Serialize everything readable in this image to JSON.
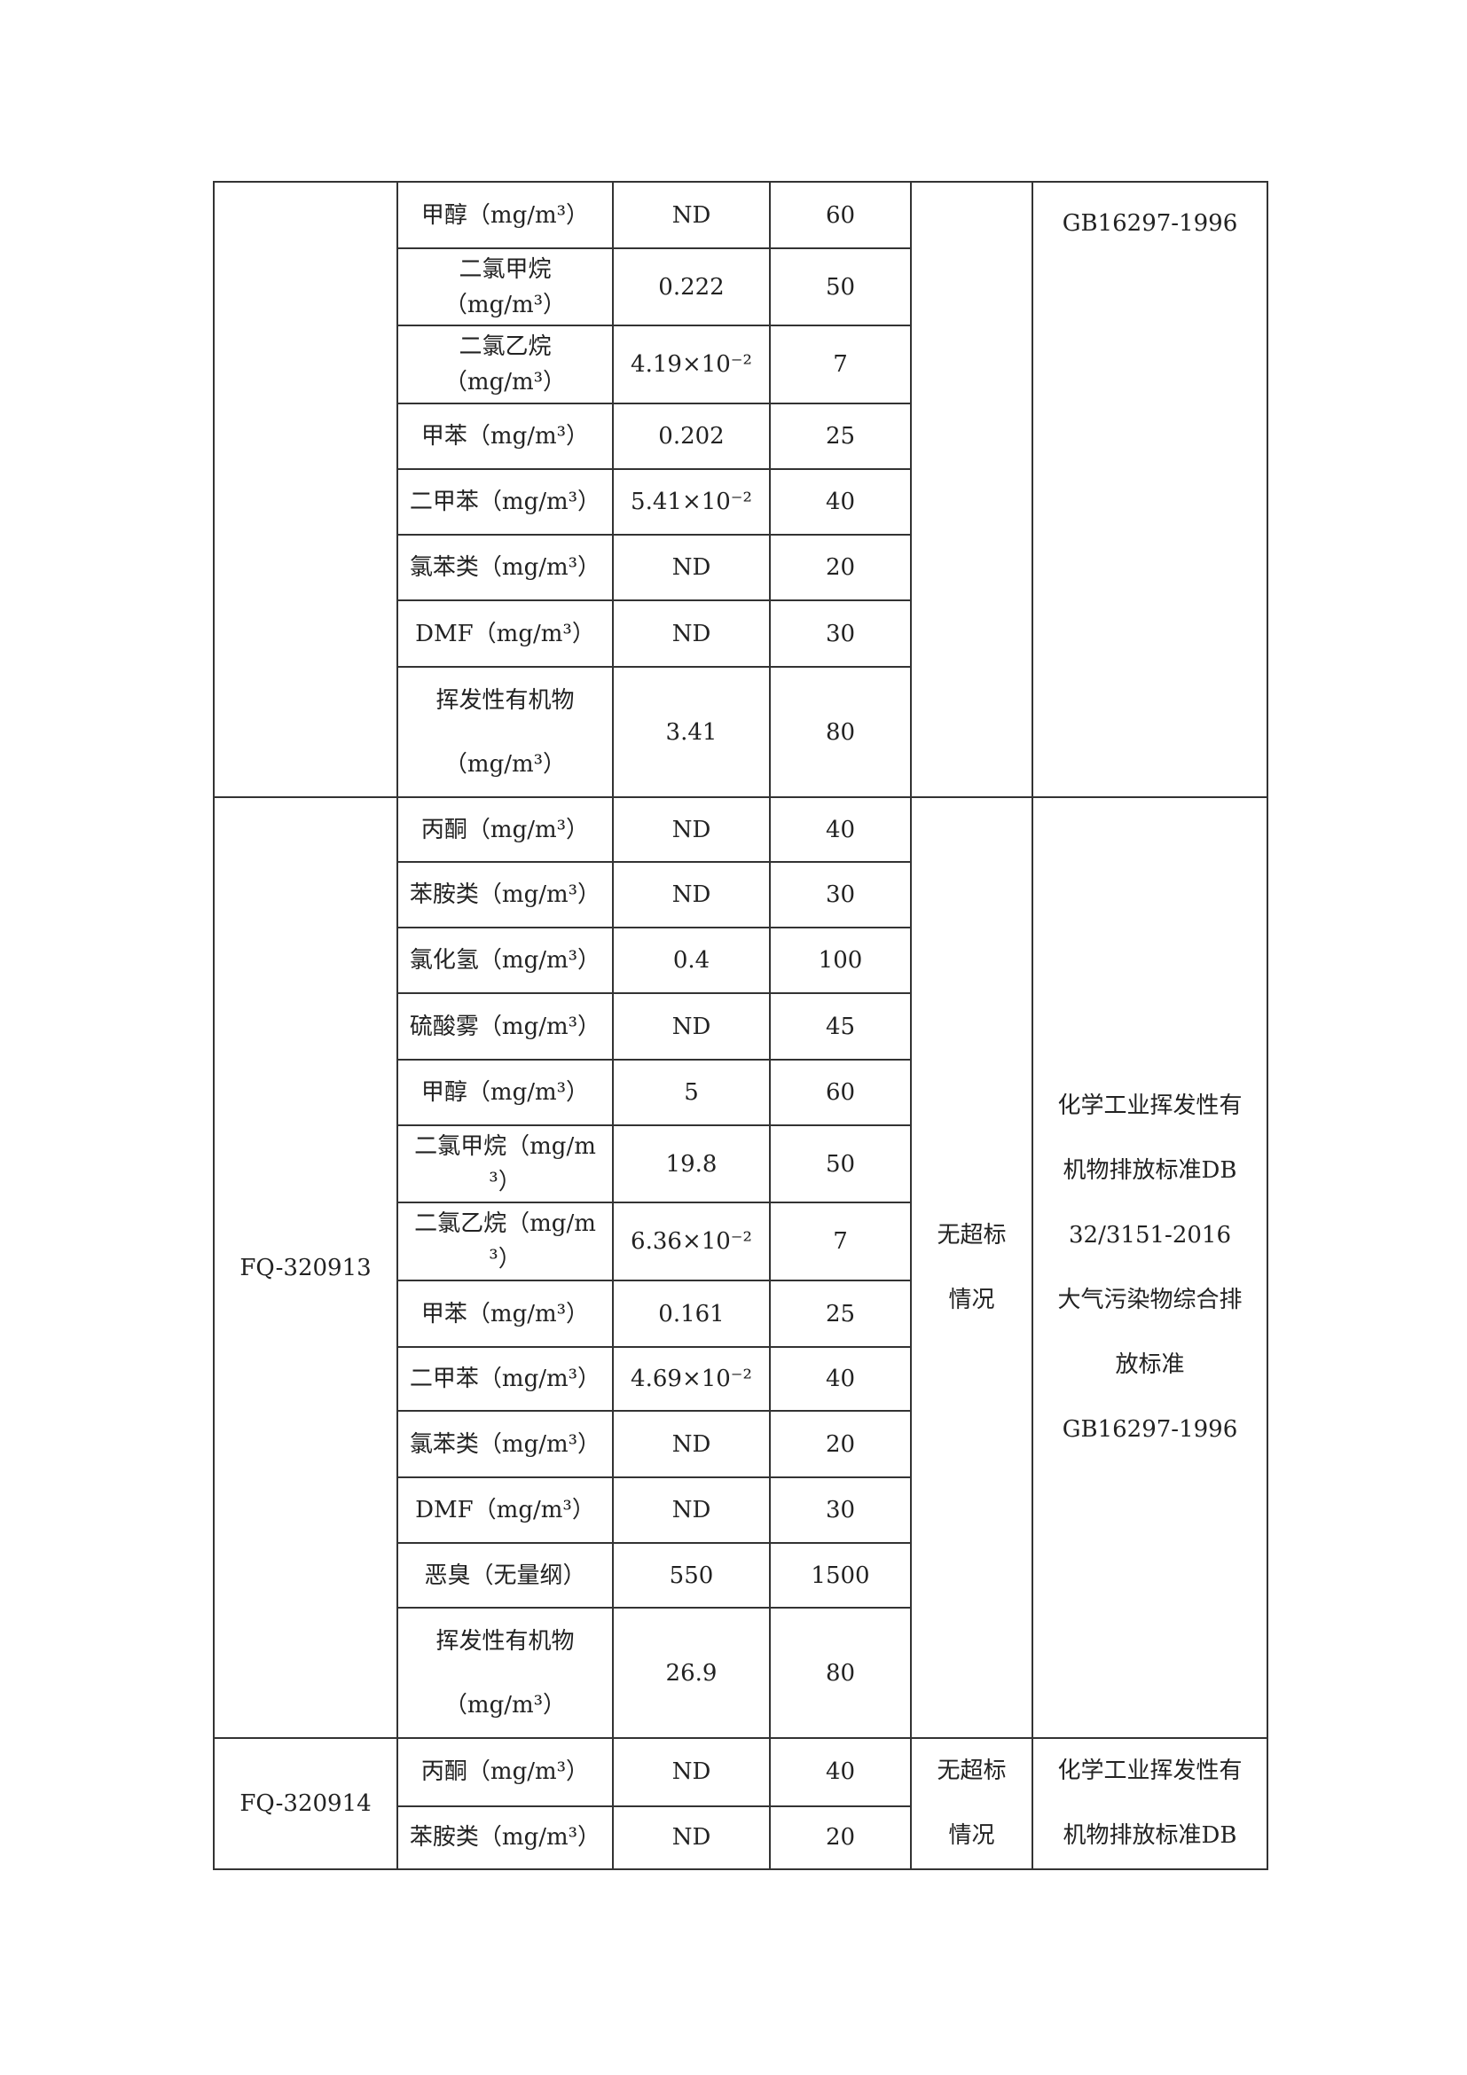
{
  "groups": [
    {
      "outlet": "",
      "conclusion": "",
      "standard": "GB16297-1996",
      "rows": [
        {
          "item": "甲醇（mg/m³）",
          "result": "ND",
          "limit": "60"
        },
        {
          "item": "二氯甲烷\n（mg/m³）",
          "result": "0.222",
          "limit": "50"
        },
        {
          "item": "二氯乙烷\n（mg/m³）",
          "result": "4.19×10⁻²",
          "limit": "7"
        },
        {
          "item": "甲苯（mg/m³）",
          "result": "0.202",
          "limit": "25"
        },
        {
          "item": "二甲苯（mg/m³）",
          "result": "5.41×10⁻²",
          "limit": "40"
        },
        {
          "item": "氯苯类（mg/m³）",
          "result": "ND",
          "limit": "20"
        },
        {
          "item": "DMF（mg/m³）",
          "result": "ND",
          "limit": "30"
        },
        {
          "item": "挥发性有机物\n（mg/m³）",
          "result": "3.41",
          "limit": "80"
        }
      ]
    },
    {
      "outlet": "FQ-320913",
      "conclusion": "无超标\n情况",
      "standard": "化学工业挥发性有\n机物排放标准DB\n32/3151-2016\n大气污染物综合排\n放标准\nGB16297-1996",
      "rows": [
        {
          "item": "丙酮（mg/m³）",
          "result": "ND",
          "limit": "40"
        },
        {
          "item": "苯胺类（mg/m³）",
          "result": "ND",
          "limit": "30"
        },
        {
          "item": "氯化氢（mg/m³）",
          "result": "0.4",
          "limit": "100"
        },
        {
          "item": "硫酸雾（mg/m³）",
          "result": "ND",
          "limit": "45"
        },
        {
          "item": "甲醇（mg/m³）",
          "result": "5",
          "limit": "60"
        },
        {
          "item": "二氯甲烷（mg/m\n³）",
          "result": "19.8",
          "limit": "50"
        },
        {
          "item": "二氯乙烷（mg/m\n³）",
          "result": "6.36×10⁻²",
          "limit": "7"
        },
        {
          "item": "甲苯（mg/m³）",
          "result": "0.161",
          "limit": "25"
        },
        {
          "item": "二甲苯（mg/m³）",
          "result": "4.69×10⁻²",
          "limit": "40"
        },
        {
          "item": "氯苯类（mg/m³）",
          "result": "ND",
          "limit": "20"
        },
        {
          "item": "DMF（mg/m³）",
          "result": "ND",
          "limit": "30"
        },
        {
          "item": "恶臭（无量纲）",
          "result": "550",
          "limit": "1500"
        },
        {
          "item": "挥发性有机物\n（mg/m³）",
          "result": "26.9",
          "limit": "80"
        }
      ]
    },
    {
      "outlet": "FQ-320914",
      "conclusion": "无超标\n情况",
      "standard": "化学工业挥发性有\n机物排放标准DB",
      "rows": [
        {
          "item": "丙酮（mg/m³）",
          "result": "ND",
          "limit": "40"
        },
        {
          "item": "苯胺类（mg/m³）",
          "result": "ND",
          "limit": "20"
        }
      ]
    }
  ]
}
